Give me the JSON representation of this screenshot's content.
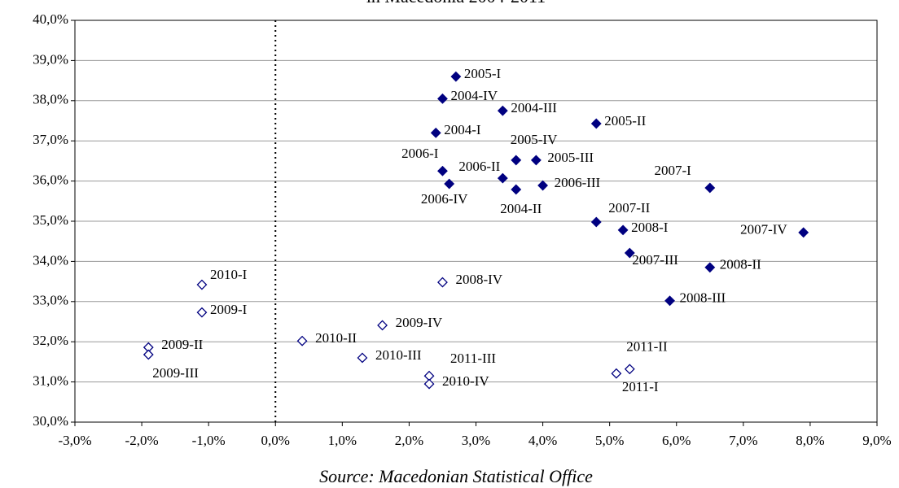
{
  "chart_data": {
    "type": "scatter",
    "title": "in Macedonia 2004-2011",
    "source": "Source: Macedonian Statistical Office",
    "xlim": [
      -3,
      9
    ],
    "ylim": [
      30,
      40
    ],
    "xticks": [
      {
        "value": -3,
        "label": "-3,0%"
      },
      {
        "value": -2,
        "label": "-2,0%"
      },
      {
        "value": -1,
        "label": "-1,0%"
      },
      {
        "value": 0,
        "label": "0,0%"
      },
      {
        "value": 1,
        "label": "1,0%"
      },
      {
        "value": 2,
        "label": "2,0%"
      },
      {
        "value": 3,
        "label": "3,0%"
      },
      {
        "value": 4,
        "label": "4,0%"
      },
      {
        "value": 5,
        "label": "5,0%"
      },
      {
        "value": 6,
        "label": "6,0%"
      },
      {
        "value": 7,
        "label": "7,0%"
      },
      {
        "value": 8,
        "label": "8,0%"
      },
      {
        "value": 9,
        "label": "9,0%"
      }
    ],
    "yticks": [
      {
        "value": 30,
        "label": "30,0%"
      },
      {
        "value": 31,
        "label": "31,0%"
      },
      {
        "value": 32,
        "label": "32,0%"
      },
      {
        "value": 33,
        "label": "33,0%"
      },
      {
        "value": 34,
        "label": "34,0%"
      },
      {
        "value": 35,
        "label": "35,0%"
      },
      {
        "value": 36,
        "label": "36,0%"
      },
      {
        "value": 37,
        "label": "37,0%"
      },
      {
        "value": 38,
        "label": "38,0%"
      },
      {
        "value": 39,
        "label": "39,0%"
      },
      {
        "value": 40,
        "label": "40,0%"
      }
    ],
    "grid": true,
    "vline": 0,
    "series": [
      {
        "color": "#000080",
        "marker": "filled",
        "labels": [
          "2005-I",
          "2004-IV",
          "2004-III",
          "2004-I",
          "2005-II",
          "2005-IV",
          "2005-III",
          "2006-I",
          "2006-II",
          "2006-IV",
          "2004-II",
          "2006-III",
          "2007-I",
          "2007-II",
          "2008-I",
          "2007-IV",
          "2007-III",
          "2008-II",
          "2008-III"
        ],
        "x": [
          2.7,
          2.5,
          3.4,
          2.4,
          4.8,
          3.6,
          3.9,
          2.5,
          3.4,
          2.6,
          3.6,
          4.0,
          6.5,
          4.8,
          5.2,
          7.9,
          5.3,
          6.5,
          5.9
        ],
        "values": [
          38.6,
          38.05,
          37.75,
          37.2,
          37.43,
          36.52,
          36.52,
          36.25,
          36.07,
          35.93,
          35.79,
          35.89,
          35.83,
          34.98,
          34.78,
          34.72,
          34.21,
          33.85,
          33.02
        ]
      },
      {
        "color": "#000080",
        "marker": "open",
        "labels": [
          "2010-I",
          "2009-I",
          "2008-IV",
          "2009-IV",
          "2009-II",
          "2009-III",
          "2010-II",
          "2010-III",
          "2011-III",
          "2010-IV",
          "2011-I",
          "2011-II"
        ],
        "x": [
          -1.1,
          -1.1,
          2.5,
          1.6,
          -1.9,
          -1.9,
          0.4,
          1.3,
          2.3,
          2.3,
          5.1,
          5.3
        ],
        "values": [
          33.42,
          32.73,
          33.48,
          32.41,
          31.86,
          31.68,
          32.02,
          31.6,
          31.15,
          30.95,
          31.21,
          31.32
        ]
      }
    ]
  }
}
